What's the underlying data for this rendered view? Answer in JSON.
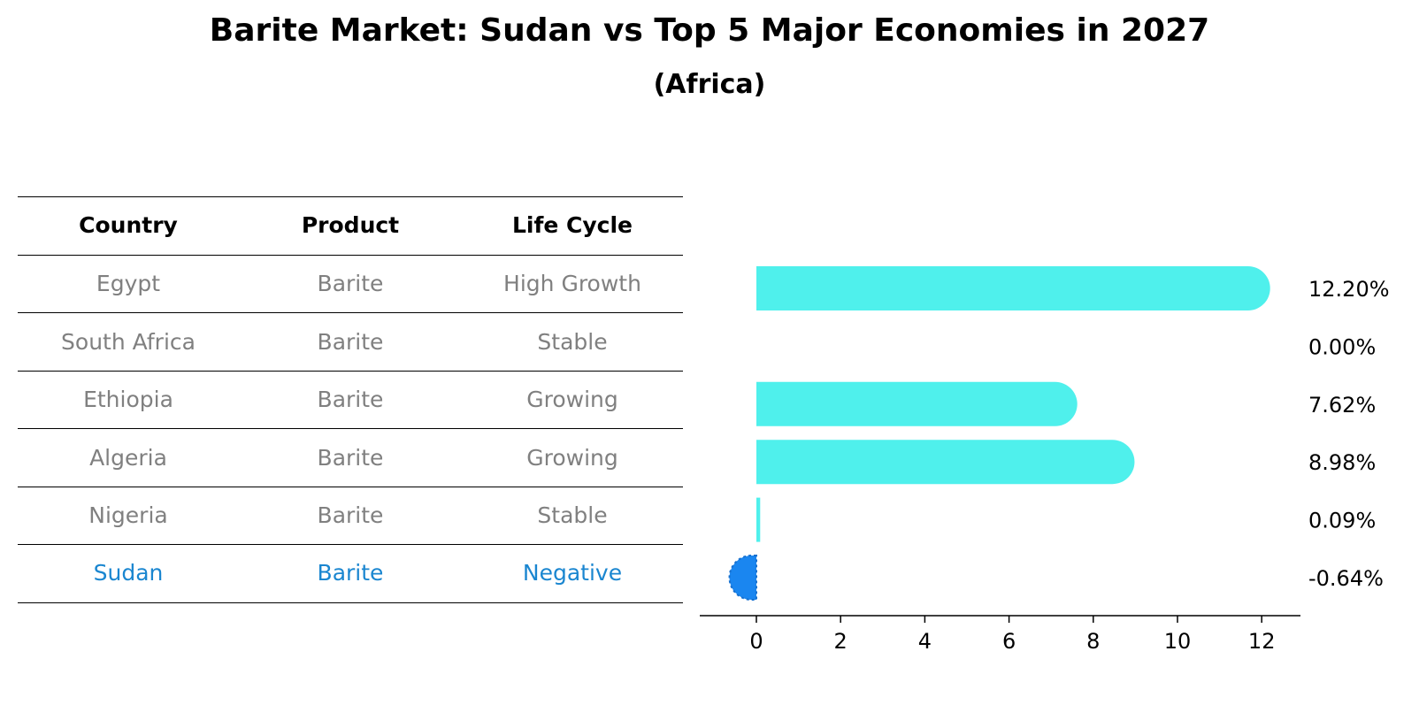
{
  "title": "Barite Market: Sudan vs Top 5 Major Economies in 2027",
  "subtitle": "(Africa)",
  "table": {
    "headers": [
      "Country",
      "Product",
      "Life Cycle"
    ],
    "rows": [
      [
        "Egypt",
        "Barite",
        "High Growth"
      ],
      [
        "South Africa",
        "Barite",
        "Stable"
      ],
      [
        "Ethiopia",
        "Barite",
        "Growing"
      ],
      [
        "Algeria",
        "Barite",
        "Growing"
      ],
      [
        "Nigeria",
        "Barite",
        "Stable"
      ],
      [
        "Sudan",
        "Barite",
        "Negative"
      ]
    ],
    "highlight_row": 5
  },
  "colors": {
    "bar": "#4ff0ec",
    "highlight": "#1a86f0",
    "muted_text": "#808080",
    "highlight_text": "#1a86d0"
  },
  "chart_data": {
    "type": "bar",
    "orientation": "horizontal",
    "categories": [
      "Egypt",
      "South Africa",
      "Ethiopia",
      "Algeria",
      "Nigeria",
      "Sudan"
    ],
    "values": [
      12.2,
      0.0,
      7.62,
      8.98,
      0.09,
      -0.64
    ],
    "value_labels": [
      "12.20%",
      "0.00%",
      "7.62%",
      "8.98%",
      "0.09%",
      "-0.64%"
    ],
    "xticks": [
      0,
      2,
      4,
      6,
      8,
      10,
      12
    ],
    "xlim": [
      -1.3,
      12.8
    ],
    "highlight": "Sudan",
    "grid": false
  }
}
